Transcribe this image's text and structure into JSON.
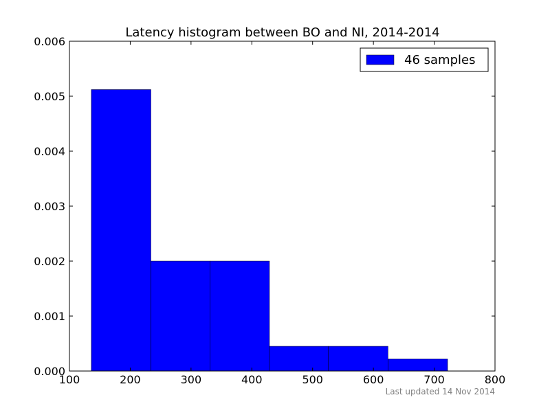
{
  "chart_data": {
    "type": "bar",
    "title": "Latency histogram between BO and NI, 2014-2014",
    "xlabel": "",
    "ylabel": "",
    "xlim": [
      100,
      800
    ],
    "ylim": [
      0,
      0.006
    ],
    "xticks": [
      "100",
      "200",
      "300",
      "400",
      "500",
      "600",
      "700",
      "800"
    ],
    "yticks": [
      "0.000",
      "0.001",
      "0.002",
      "0.003",
      "0.004",
      "0.005",
      "0.006"
    ],
    "grid": false,
    "legend": {
      "placement": "top-right",
      "entries": [
        "46 samples"
      ]
    },
    "series": [
      {
        "name": "46 samples",
        "color": "#0000ff",
        "bins": [
          {
            "x0": 136,
            "x1": 234,
            "value": 0.00512
          },
          {
            "x0": 234,
            "x1": 331,
            "value": 0.002
          },
          {
            "x0": 331,
            "x1": 429,
            "value": 0.002
          },
          {
            "x0": 429,
            "x1": 526,
            "value": 0.00045
          },
          {
            "x0": 526,
            "x1": 624,
            "value": 0.00045
          },
          {
            "x0": 624,
            "x1": 722,
            "value": 0.00022
          }
        ]
      }
    ]
  },
  "footer": {
    "updated": "Last updated 14 Nov 2014"
  }
}
